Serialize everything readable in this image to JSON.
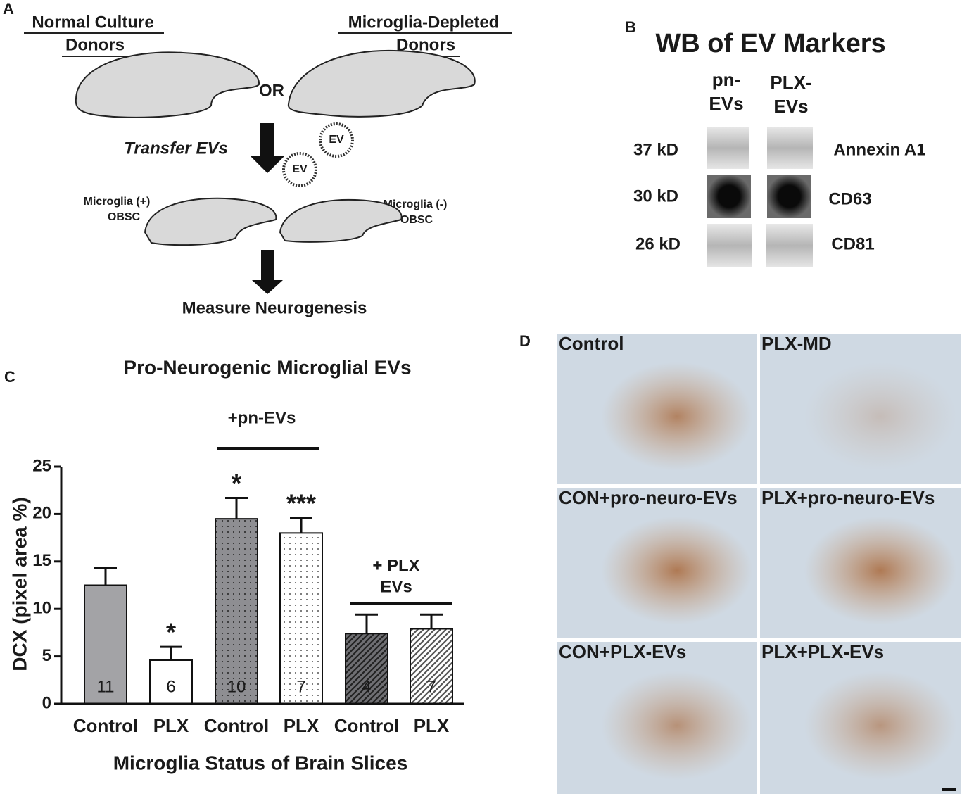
{
  "panel_a": {
    "letter": "A",
    "donor_left": [
      "Normal Culture",
      "Donors"
    ],
    "donor_right": [
      "Microglia-Depleted",
      "Donors"
    ],
    "or": "OR",
    "transfer": "Transfer EVs",
    "ev": [
      "EV",
      "EV"
    ],
    "slice_left": [
      "Microglia (+)",
      "OBSC"
    ],
    "slice_right": [
      "Microglia (-)",
      "OBSC"
    ],
    "measure": "Measure Neurogenesis"
  },
  "panel_b": {
    "letter": "B",
    "title": "WB of EV Markers",
    "columns": [
      [
        "pn-",
        "EVs"
      ],
      [
        "PLX-",
        "EVs"
      ]
    ],
    "rows": [
      {
        "weight": "37 kD",
        "marker": "Annexin A1"
      },
      {
        "weight": "30 kD",
        "marker": "CD63"
      },
      {
        "weight": "26 kD",
        "marker": "CD81"
      }
    ]
  },
  "chart_data": {
    "type": "bar",
    "letter": "C",
    "title": "Pro-Neurogenic Microglial EVs",
    "y_label": "DCX (pixel area %)",
    "x_label": "Microglia Status of Brain Slices",
    "categories": [
      "Control",
      "PLX",
      "Control",
      "PLX",
      "Control",
      "PLX"
    ],
    "values": [
      12.5,
      4.6,
      19.5,
      18,
      7.4,
      7.9
    ],
    "errors": [
      1.8,
      1.4,
      2.2,
      1.6,
      2.0,
      1.5
    ],
    "sample_sizes": [
      11,
      6,
      10,
      7,
      4,
      7
    ],
    "significance": [
      null,
      "*",
      "*",
      "***",
      null,
      null
    ],
    "colors": [
      "#a3a3a6",
      "#ffffff",
      "#8e8e92",
      "#ffffff",
      "#6f6f73",
      "#ffffff"
    ],
    "patterns": [
      "solid",
      "solid",
      "dots",
      "dots",
      "hatch",
      "hatch"
    ],
    "groups": [
      [
        "+pn-EVs"
      ],
      [
        "+ PLX",
        "EVs"
      ]
    ],
    "ylim": [
      0,
      25
    ],
    "yticks": [
      0,
      5,
      10,
      15,
      20,
      25
    ]
  },
  "panel_d": {
    "letter": "D",
    "images": [
      "Control",
      "PLX-MD",
      "CON+pro-neuro-EVs",
      "PLX+pro-neuro-EVs",
      "CON+PLX-EVs",
      "PLX+PLX-EVs"
    ]
  }
}
